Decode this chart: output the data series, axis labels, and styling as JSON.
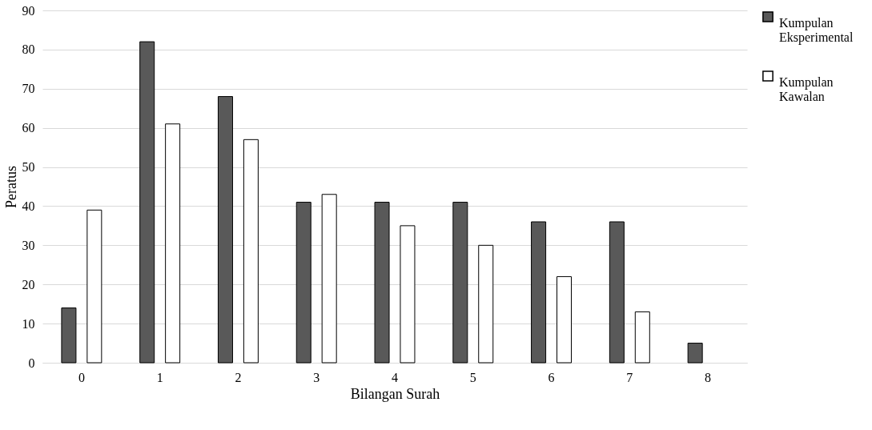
{
  "chart_data": {
    "type": "bar",
    "xlabel": "Bilangan Surah",
    "ylabel": "Peratus",
    "categories": [
      "0",
      "1",
      "2",
      "3",
      "4",
      "5",
      "6",
      "7",
      "8"
    ],
    "series": [
      {
        "name": "Kumpulan Eksperimental",
        "color": "#595959",
        "values": [
          14,
          82,
          68,
          41,
          41,
          41,
          36,
          36,
          5
        ]
      },
      {
        "name": "Kumpulan Kawalan",
        "color": "#ffffff",
        "values": [
          39,
          61,
          57,
          43,
          35,
          30,
          22,
          13,
          null
        ]
      }
    ],
    "ylim": [
      0,
      90
    ],
    "yticks": [
      0,
      10,
      20,
      30,
      40,
      50,
      60,
      70,
      80,
      90
    ],
    "grid": "y",
    "legend": "right"
  }
}
